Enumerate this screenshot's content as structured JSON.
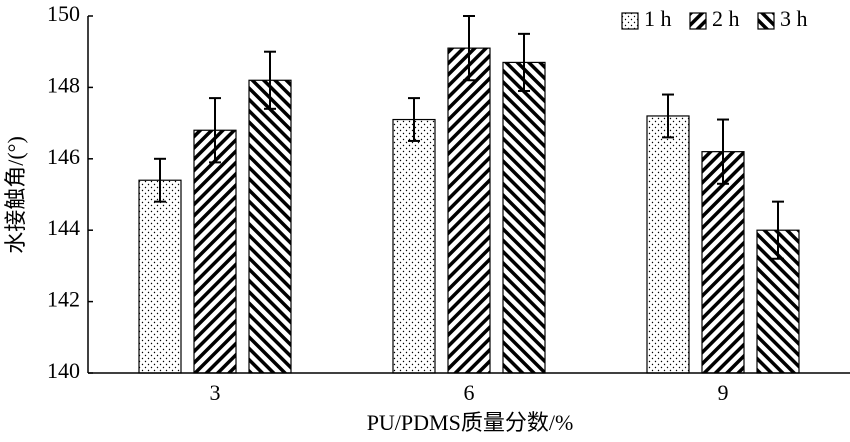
{
  "chart_data": {
    "type": "bar",
    "x_label": "PU/PDMS质量分数/%",
    "y_label": "水接触角/(°)",
    "categories": [
      "3",
      "6",
      "9"
    ],
    "series": [
      {
        "name": "1 h",
        "color": "#000000",
        "pattern": "dots",
        "values": [
          145.4,
          147.1,
          147.2
        ],
        "errors": [
          0.6,
          0.6,
          0.6
        ]
      },
      {
        "name": "2 h",
        "color": "#000000",
        "pattern": "forward-hatch",
        "values": [
          146.8,
          149.1,
          146.2
        ],
        "errors": [
          0.9,
          0.9,
          0.9
        ]
      },
      {
        "name": "3 h",
        "color": "#000000",
        "pattern": "back-hatch",
        "values": [
          148.2,
          148.7,
          144.0
        ],
        "errors": [
          0.8,
          0.8,
          0.8
        ]
      }
    ],
    "ylim": [
      140,
      150
    ],
    "yticks": [
      140,
      142,
      144,
      146,
      148,
      150
    ],
    "legend": "top-right"
  }
}
